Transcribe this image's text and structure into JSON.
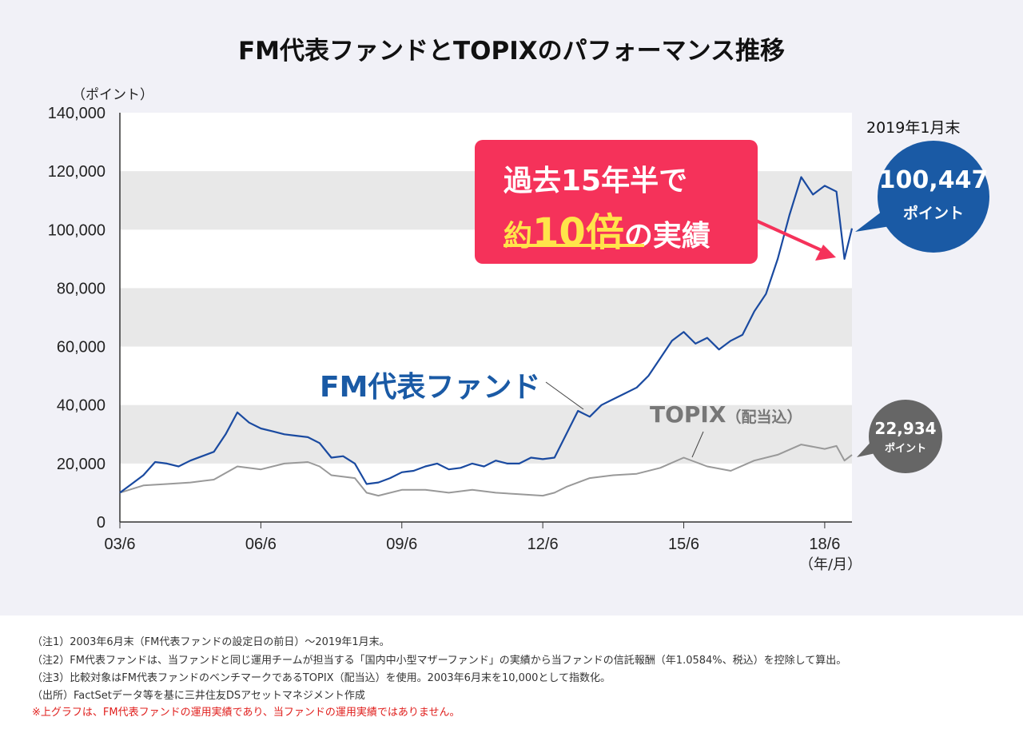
{
  "title": "FM代表ファンドとTOPIXのパフォーマンス推移",
  "chart_data": {
    "type": "line",
    "title": "FM代表ファンドとTOPIXのパフォーマンス推移",
    "ylabel": "（ポイント）",
    "xlabel": "（年/月）",
    "ylim": [
      0,
      140000
    ],
    "yticks": [
      "0",
      "20,000",
      "40,000",
      "60,000",
      "80,000",
      "100,000",
      "120,000",
      "140,000"
    ],
    "ytick_values": [
      0,
      20000,
      40000,
      60000,
      80000,
      100000,
      120000,
      140000
    ],
    "xticks": [
      "03/6",
      "06/6",
      "09/6",
      "12/6",
      "15/6",
      "18/6"
    ],
    "xtick_values": [
      2003.5,
      2006.5,
      2009.5,
      2012.5,
      2015.5,
      2018.5
    ],
    "xlim": [
      2003.5,
      2019.08
    ],
    "grid": "alternating horizontal bands",
    "series": [
      {
        "name": "FM代表ファンド",
        "color": "#1a4aa0",
        "x": [
          2003.5,
          2003.75,
          2004.0,
          2004.25,
          2004.5,
          2004.75,
          2005.0,
          2005.25,
          2005.5,
          2005.75,
          2006.0,
          2006.25,
          2006.5,
          2006.75,
          2007.0,
          2007.25,
          2007.5,
          2007.75,
          2008.0,
          2008.25,
          2008.5,
          2008.75,
          2009.0,
          2009.25,
          2009.5,
          2009.75,
          2010.0,
          2010.25,
          2010.5,
          2010.75,
          2011.0,
          2011.25,
          2011.5,
          2011.75,
          2012.0,
          2012.25,
          2012.5,
          2012.75,
          2013.0,
          2013.25,
          2013.5,
          2013.75,
          2014.0,
          2014.25,
          2014.5,
          2014.75,
          2015.0,
          2015.25,
          2015.5,
          2015.75,
          2016.0,
          2016.25,
          2016.5,
          2016.75,
          2017.0,
          2017.25,
          2017.5,
          2017.75,
          2018.0,
          2018.25,
          2018.5,
          2018.75,
          2018.92,
          2019.08
        ],
        "y": [
          10000,
          13000,
          16000,
          20500,
          20000,
          19000,
          21000,
          22500,
          24000,
          30000,
          37500,
          34000,
          32000,
          31000,
          30000,
          29500,
          29000,
          27000,
          22000,
          22500,
          20000,
          13000,
          13500,
          15000,
          17000,
          17500,
          19000,
          20000,
          18000,
          18500,
          20000,
          19000,
          21000,
          20000,
          20000,
          22000,
          21500,
          22000,
          30000,
          38000,
          36000,
          40000,
          42000,
          44000,
          46000,
          50000,
          56000,
          62000,
          65000,
          61000,
          63000,
          59000,
          62000,
          64000,
          72000,
          78000,
          90000,
          105000,
          118000,
          112000,
          115000,
          113000,
          90000,
          100447
        ]
      },
      {
        "name": "TOPIX（配当込）",
        "color": "#999999",
        "x": [
          2003.5,
          2004.0,
          2004.5,
          2005.0,
          2005.5,
          2006.0,
          2006.5,
          2007.0,
          2007.5,
          2007.75,
          2008.0,
          2008.5,
          2008.75,
          2009.0,
          2009.5,
          2010.0,
          2010.5,
          2011.0,
          2011.5,
          2012.0,
          2012.5,
          2012.75,
          2013.0,
          2013.5,
          2014.0,
          2014.5,
          2015.0,
          2015.5,
          2016.0,
          2016.5,
          2017.0,
          2017.5,
          2018.0,
          2018.5,
          2018.75,
          2018.92,
          2019.08
        ],
        "y": [
          10000,
          12500,
          13000,
          13500,
          14500,
          19000,
          18000,
          20000,
          20500,
          19000,
          16000,
          15000,
          10000,
          9000,
          11000,
          11000,
          10000,
          11000,
          10000,
          9500,
          9000,
          10000,
          12000,
          15000,
          16000,
          16500,
          18500,
          22000,
          19000,
          17500,
          21000,
          23000,
          26500,
          25000,
          26000,
          21000,
          22934
        ]
      }
    ],
    "annotations": {
      "date_label": "2019年1月末",
      "fund_end_value": "100,447",
      "fund_end_unit": "ポイント",
      "topix_end_value": "22,934",
      "topix_end_unit": "ポイント",
      "fund_label": "FM代表ファンド",
      "topix_label": "TOPIX",
      "topix_label_suffix": "（配当込）",
      "callout_line1": "過去15年半で",
      "callout_pre": "約",
      "callout_big": "10倍",
      "callout_post": "の実績"
    }
  },
  "notes": [
    "（注1）2003年6月末（FM代表ファンドの設定日の前日）～2019年1月末。",
    "（注2）FM代表ファンドは、当ファンドと同じ運用チームが担当する「国内中小型マザーファンド」の実績から当ファンドの信託報酬（年1.0584%、税込）を控除して算出。",
    "（注3）比較対象はFM代表ファンドのベンチマークであるTOPIX（配当込）を使用。2003年6月末を10,000として指数化。",
    "（出所）FactSetデータ等を基に三井住友DSアセットマネジメント作成"
  ],
  "warning": "※上グラフは、FM代表ファンドの運用実績であり、当ファンドの運用実績ではありません。",
  "colors": {
    "fund": "#1a4aa0",
    "topix": "#999999",
    "callout": "#f5325a",
    "fund_bubble": "#1a5aa5",
    "topix_bubble": "#666666"
  }
}
